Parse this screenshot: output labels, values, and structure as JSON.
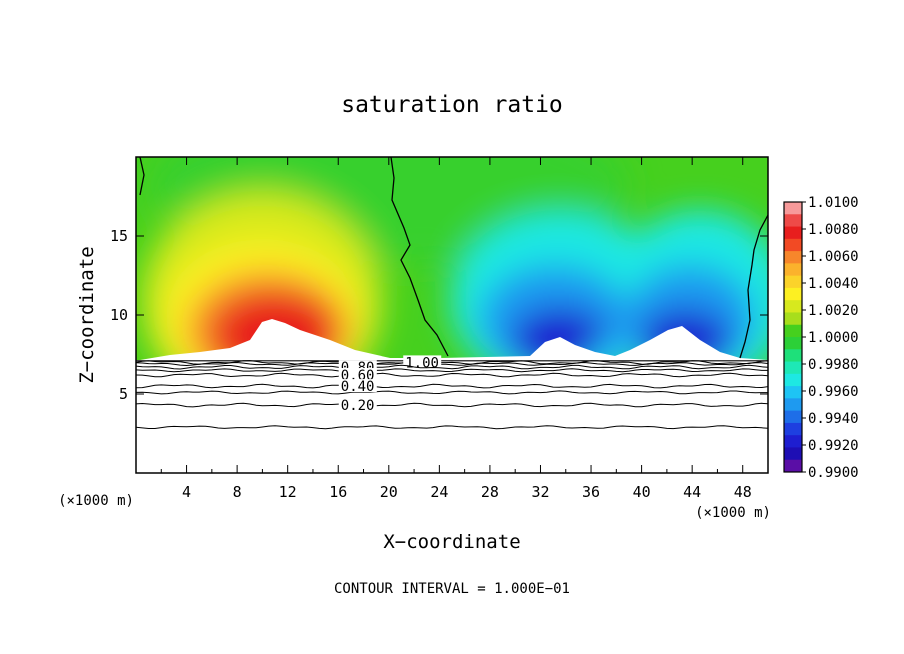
{
  "chart_data": {
    "type": "heatmap",
    "title": "saturation ratio",
    "xlabel": "X−coordinate",
    "ylabel": "Z−coordinate",
    "x_unit_left": "(×1000 m)",
    "x_unit_right": "(×1000 m)",
    "footer": "CONTOUR INTERVAL = 1.000E−01",
    "xlim": [
      0,
      50
    ],
    "ylim": [
      0,
      20
    ],
    "x_ticks": [
      4,
      8,
      12,
      16,
      20,
      24,
      28,
      32,
      36,
      40,
      44,
      48
    ],
    "x_tick_labels": [
      "4",
      "8",
      "12",
      "16",
      "20",
      "24",
      "28",
      "32",
      "36",
      "40",
      "44",
      "48"
    ],
    "y_ticks": [
      5,
      10,
      15
    ],
    "y_tick_labels": [
      "5",
      "10",
      "15"
    ],
    "colorbar": {
      "min": 0.99,
      "max": 1.01,
      "labels": [
        "1.0100",
        "1.0080",
        "1.0060",
        "1.0040",
        "1.0020",
        "1.0000",
        "0.9980",
        "0.9960",
        "0.9940",
        "0.9920",
        "0.9900"
      ],
      "colors": [
        "#f79a9a",
        "#ee4a48",
        "#e81e1e",
        "#f24a24",
        "#f7862b",
        "#fbb22c",
        "#fbd32a",
        "#fdf022",
        "#d7e91e",
        "#a8de1c",
        "#46d01e",
        "#2cd038",
        "#1ee07a",
        "#1ee8b6",
        "#1ee8e3",
        "#1ec4f4",
        "#1e9af0",
        "#1e6ee8",
        "#1e3fe0",
        "#1e1ed0",
        "#1e0eb4",
        "#5a0ea6"
      ]
    },
    "line_contours": [
      {
        "label": "1.00",
        "z": 7.0
      },
      {
        "label": "0.80",
        "z": 6.7
      },
      {
        "label": "0.60",
        "z": 6.2
      },
      {
        "label": "0.40",
        "z": 5.5
      },
      {
        "label": "0.20",
        "z": 4.3
      }
    ],
    "extra_contour_levels_z": [
      6.9,
      6.5,
      5.1,
      2.9
    ],
    "field_base_z": 7.1,
    "saturation_equal_one_boundaries_x": [
      0.3,
      22.5,
      49.0
    ],
    "features": [
      {
        "kind": "supersaturated_max",
        "x_center": 10,
        "value": 1.007,
        "z_top": 14
      },
      {
        "kind": "subsaturated_min",
        "x_center": 32,
        "value": 0.991,
        "z_top": 8.5
      },
      {
        "kind": "subsaturated_min",
        "x_center": 43,
        "value": 0.991,
        "z_top": 9.2
      }
    ]
  }
}
